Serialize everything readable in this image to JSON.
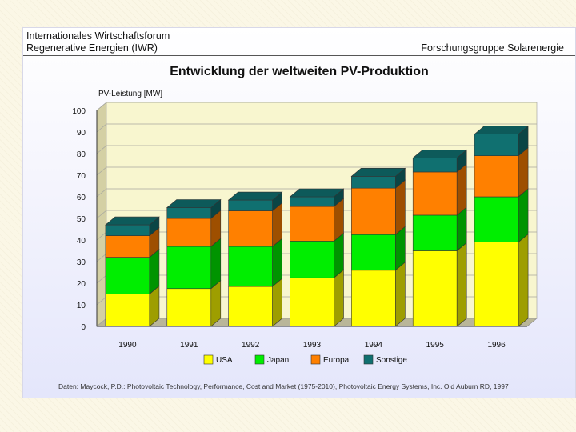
{
  "header": {
    "org_line1": "Internationales Wirtschaftsforum",
    "org_line2": "Regenerative Energien (IWR)",
    "research_group": "Forschungsgruppe Solarenergie"
  },
  "footnote": "Daten: Maycock, P.D.: Photovoltaic Technology, Performance, Cost and Market (1975-2010), Photovoltaic Energy Systems, Inc. Old Auburn RD, 1997",
  "colors": {
    "plot_bg": "#f8f6cf",
    "USA": "#ffff00",
    "Japan": "#00ee00",
    "Europa": "#ff8000",
    "Sonstige": "#107070"
  },
  "chart_data": {
    "type": "bar",
    "stacked": true,
    "three_d": true,
    "title": "Entwicklung der weltweiten PV-Produktion",
    "ylabel": "PV-Leistung [MW]",
    "xlabel": "",
    "ylim": [
      0,
      100
    ],
    "yticks": [
      0,
      10,
      20,
      30,
      40,
      50,
      60,
      70,
      80,
      90,
      100
    ],
    "categories": [
      "1990",
      "1991",
      "1992",
      "1993",
      "1994",
      "1995",
      "1996"
    ],
    "series": [
      {
        "name": "USA",
        "values": [
          15,
          17.5,
          18.5,
          22.5,
          26,
          35,
          39
        ]
      },
      {
        "name": "Japan",
        "values": [
          17,
          19.5,
          18.5,
          17,
          16.5,
          16.5,
          21
        ]
      },
      {
        "name": "Europa",
        "values": [
          10,
          13,
          16.5,
          16,
          21.5,
          20,
          19
        ]
      },
      {
        "name": "Sonstige",
        "values": [
          5,
          5,
          5,
          4.5,
          5.5,
          6.5,
          10
        ]
      }
    ],
    "legend": {
      "position": "bottom"
    }
  }
}
